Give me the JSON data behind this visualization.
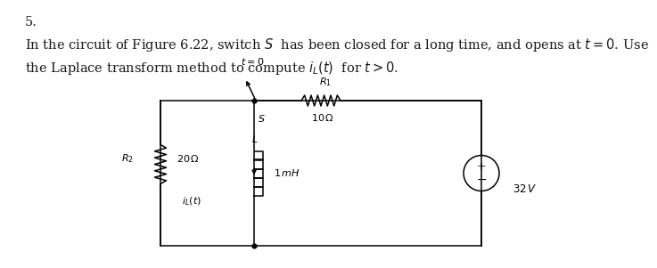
{
  "problem_number": "5.",
  "text_line1": "In the circuit of Figure 6.22, switch $S$  has been closed for a long time, and opens at $t = 0$. Use",
  "text_line2": "the Laplace transform method to compute $i_L(t)$  for $t>0$.",
  "bg_color": "#ffffff",
  "text_color": "#1a1a1a",
  "font_size": 10.5,
  "circuit": {
    "t0_label": "$t = 0$",
    "R1_label": "$R_1$",
    "R1_val": "$10\\,\\Omega$",
    "S_label": "$S$",
    "R2_label": "$R_2$",
    "R2_val": "$20\\,\\Omega$",
    "L_label": "$L$",
    "L_val": "$1\\,mH$",
    "V_val": "$32\\,V$",
    "iL_label": "$i_L(t)$"
  }
}
